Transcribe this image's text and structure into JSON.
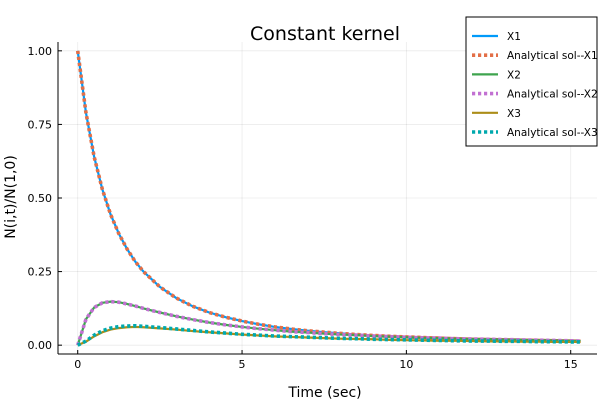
{
  "chart_data": {
    "type": "line",
    "title": "Constant kernel",
    "xlabel": "Time (sec)",
    "ylabel": "N(i,t)/N(1,0)",
    "xlim": [
      -0.6,
      15.8
    ],
    "ylim": [
      -0.03,
      1.03
    ],
    "x_ticks": [
      0,
      5,
      10,
      15
    ],
    "x_tick_labels": [
      "0",
      "5",
      "10",
      "15"
    ],
    "y_ticks": [
      0.0,
      0.25,
      0.5,
      0.75,
      1.0
    ],
    "y_tick_labels": [
      "0.00",
      "0.25",
      "0.50",
      "0.75",
      "1.00"
    ],
    "grid": true,
    "legend_position": "top-right",
    "x": [
      0,
      0.25,
      0.5,
      0.75,
      1,
      1.25,
      1.5,
      1.75,
      2,
      2.5,
      3,
      3.5,
      4,
      4.5,
      5,
      5.5,
      6,
      6.5,
      7,
      7.5,
      8,
      8.5,
      9,
      9.5,
      10,
      10.5,
      11,
      11.5,
      12,
      12.5,
      13,
      13.5,
      14,
      14.5,
      15,
      15.3
    ],
    "series": [
      {
        "name": "X1",
        "color": "#009AFA",
        "style": "solid",
        "values": [
          1.0,
          0.79,
          0.64,
          0.529,
          0.444,
          0.379,
          0.327,
          0.284,
          0.25,
          0.198,
          0.16,
          0.132,
          0.111,
          0.095,
          0.082,
          0.071,
          0.062,
          0.055,
          0.049,
          0.044,
          0.04,
          0.036,
          0.033,
          0.03,
          0.028,
          0.026,
          0.024,
          0.022,
          0.02,
          0.019,
          0.018,
          0.017,
          0.016,
          0.015,
          0.014,
          0.013
        ]
      },
      {
        "name": "Analytical sol--X1",
        "color": "#E36F47",
        "style": "dotted",
        "values": [
          1.0,
          0.79,
          0.64,
          0.529,
          0.444,
          0.379,
          0.327,
          0.284,
          0.25,
          0.198,
          0.16,
          0.132,
          0.111,
          0.095,
          0.082,
          0.071,
          0.062,
          0.055,
          0.049,
          0.044,
          0.04,
          0.036,
          0.033,
          0.03,
          0.028,
          0.026,
          0.024,
          0.022,
          0.02,
          0.019,
          0.018,
          0.017,
          0.016,
          0.015,
          0.014,
          0.013
        ]
      },
      {
        "name": "X2",
        "color": "#3EA44E",
        "style": "solid",
        "values": [
          0.0,
          0.088,
          0.128,
          0.144,
          0.148,
          0.146,
          0.14,
          0.133,
          0.125,
          0.111,
          0.098,
          0.087,
          0.077,
          0.069,
          0.062,
          0.056,
          0.051,
          0.046,
          0.043,
          0.039,
          0.036,
          0.034,
          0.031,
          0.029,
          0.027,
          0.025,
          0.024,
          0.022,
          0.021,
          0.02,
          0.019,
          0.018,
          0.017,
          0.016,
          0.015,
          0.014
        ]
      },
      {
        "name": "Analytical sol--X2",
        "color": "#C271D2",
        "style": "dotted",
        "values": [
          0.0,
          0.088,
          0.128,
          0.144,
          0.148,
          0.146,
          0.14,
          0.133,
          0.125,
          0.111,
          0.098,
          0.087,
          0.077,
          0.069,
          0.062,
          0.056,
          0.051,
          0.046,
          0.043,
          0.039,
          0.036,
          0.034,
          0.031,
          0.029,
          0.027,
          0.025,
          0.024,
          0.022,
          0.021,
          0.02,
          0.019,
          0.018,
          0.017,
          0.016,
          0.015,
          0.014
        ]
      },
      {
        "name": "X3",
        "color": "#AC8D18",
        "style": "solid",
        "values": [
          0.0,
          0.012,
          0.03,
          0.044,
          0.053,
          0.058,
          0.061,
          0.062,
          0.061,
          0.057,
          0.053,
          0.048,
          0.044,
          0.04,
          0.036,
          0.033,
          0.03,
          0.028,
          0.026,
          0.024,
          0.022,
          0.021,
          0.02,
          0.018,
          0.017,
          0.016,
          0.015,
          0.015,
          0.014,
          0.013,
          0.013,
          0.012,
          0.012,
          0.011,
          0.011,
          0.011
        ]
      },
      {
        "name": "Analytical sol--X3",
        "color": "#00A9AD",
        "style": "dotted",
        "values": [
          0.0,
          0.014,
          0.034,
          0.049,
          0.058,
          0.063,
          0.065,
          0.066,
          0.064,
          0.06,
          0.055,
          0.05,
          0.045,
          0.041,
          0.037,
          0.034,
          0.031,
          0.029,
          0.027,
          0.025,
          0.023,
          0.022,
          0.02,
          0.019,
          0.018,
          0.017,
          0.016,
          0.015,
          0.014,
          0.014,
          0.013,
          0.013,
          0.012,
          0.012,
          0.011,
          0.011
        ]
      }
    ]
  }
}
